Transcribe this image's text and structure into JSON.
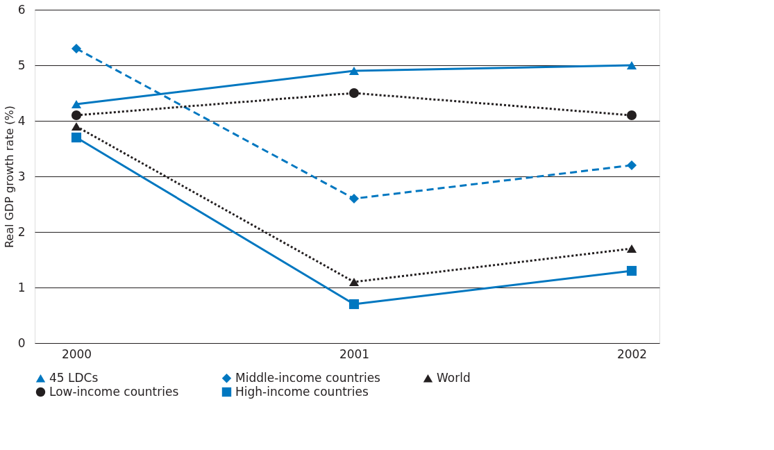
{
  "chart_data": {
    "type": "line",
    "ylabel": "Real GDP growth rate (%)",
    "categories": [
      "2000",
      "2001",
      "2002"
    ],
    "series": [
      {
        "name": "45 LDCs",
        "color": "#0077c0",
        "marker": "triangle",
        "line_style": "solid",
        "values": [
          4.3,
          4.9,
          5.0
        ]
      },
      {
        "name": "Middle-income countries",
        "color": "#0077c0",
        "marker": "diamond",
        "line_style": "dashed",
        "values": [
          5.3,
          2.6,
          3.2
        ]
      },
      {
        "name": "World",
        "color": "#231f20",
        "marker": "triangle",
        "line_style": "dotted",
        "values": [
          3.9,
          1.1,
          1.7
        ]
      },
      {
        "name": "Low-income countries",
        "color": "#231f20",
        "marker": "circle",
        "line_style": "dotted",
        "values": [
          4.1,
          4.5,
          4.1
        ]
      },
      {
        "name": "High-income countries",
        "color": "#0077c0",
        "marker": "square",
        "line_style": "solid",
        "values": [
          3.7,
          0.7,
          1.3
        ]
      }
    ],
    "ylim": [
      0,
      6
    ],
    "yticks": [
      0,
      1,
      2,
      3,
      4,
      5,
      6
    ],
    "grid": "y",
    "legend": "bottom"
  }
}
